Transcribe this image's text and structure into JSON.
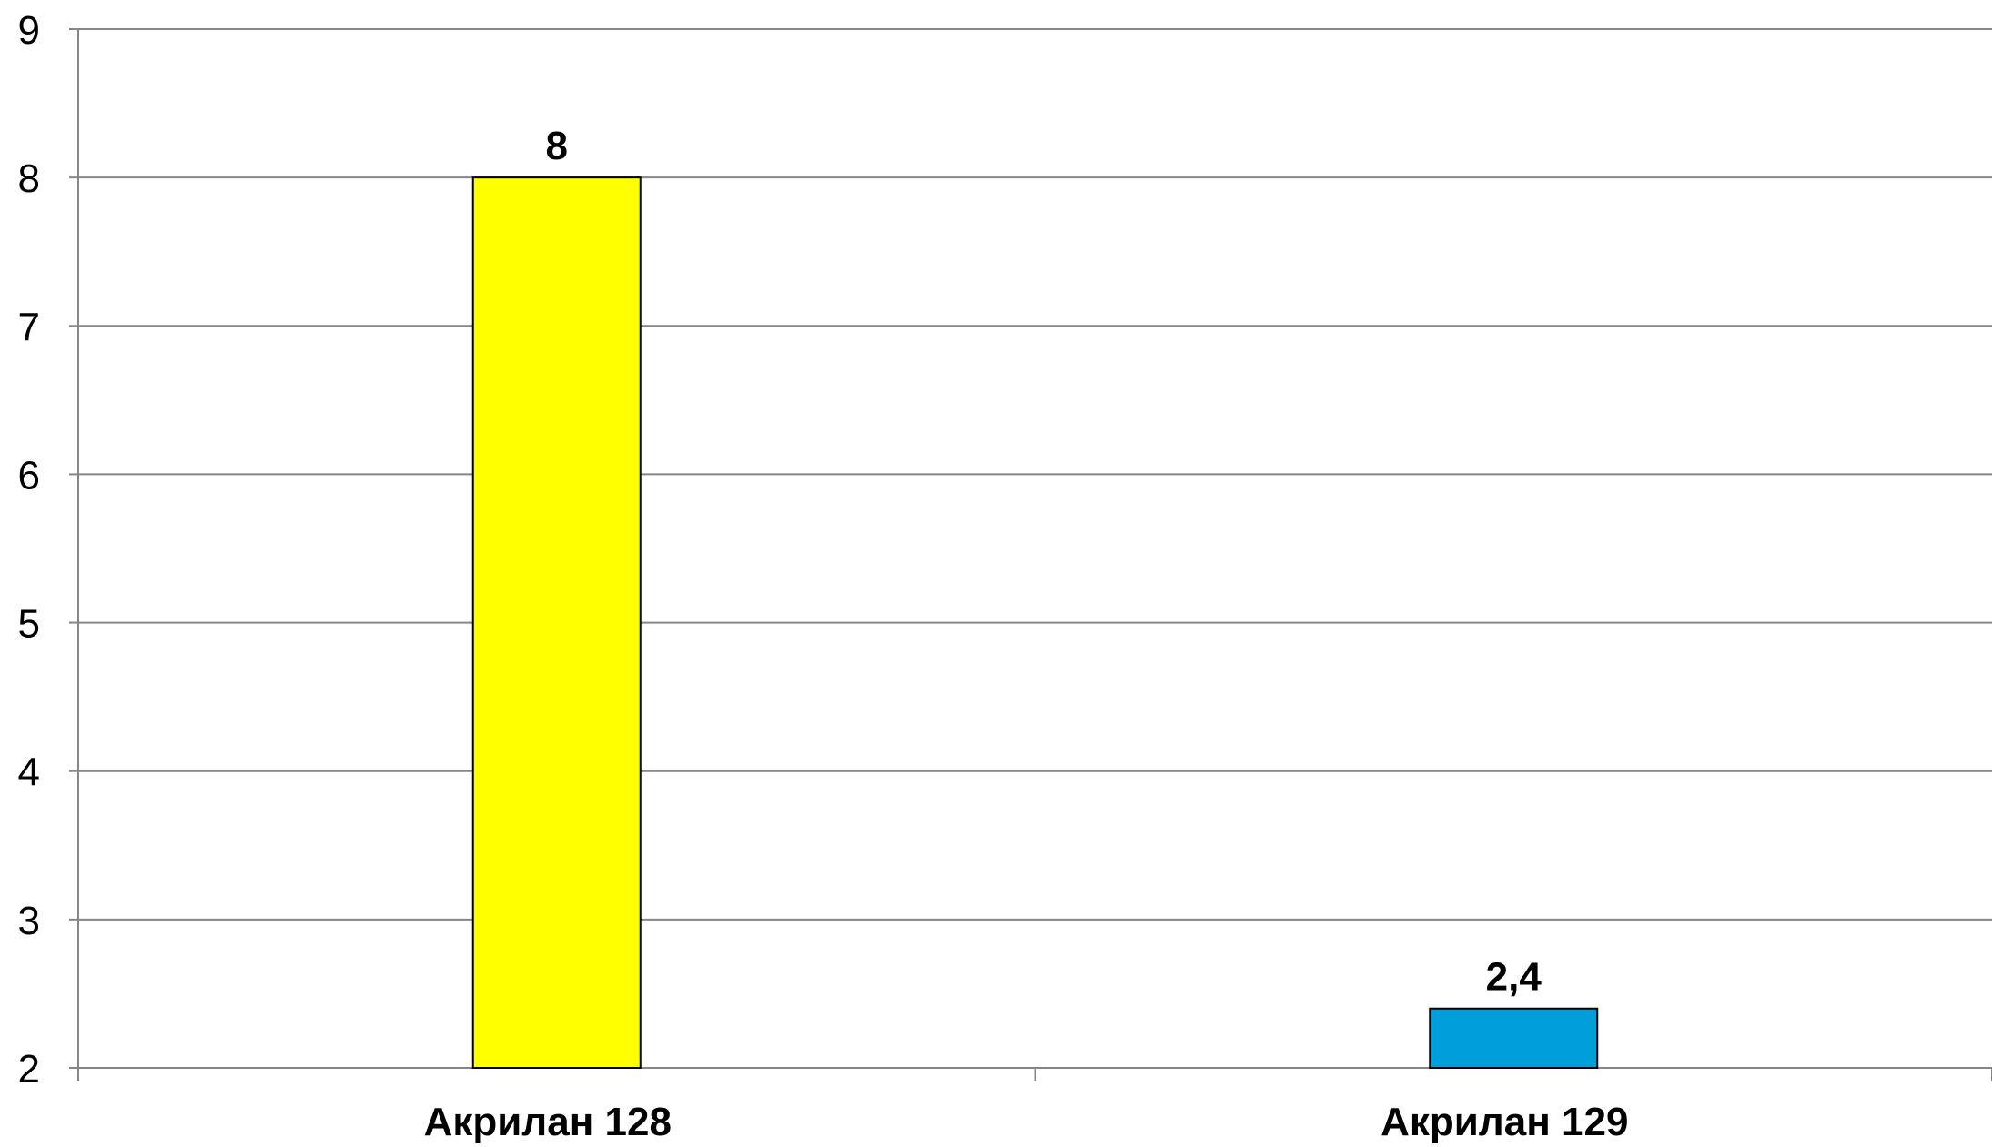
{
  "chart_data": {
    "type": "bar",
    "title": "",
    "xlabel": "",
    "ylabel": "",
    "categories": [
      "Акрилан 128",
      "Акрилан 129"
    ],
    "values": [
      8,
      2.4
    ],
    "data_labels": [
      "8",
      "2,4"
    ],
    "bar_colors": [
      "#FFFF00",
      "#009FDB"
    ],
    "ylim": [
      2,
      9
    ],
    "yticks": [
      2,
      3,
      4,
      5,
      6,
      7,
      8,
      9
    ],
    "grid": true,
    "legend": "none",
    "colors": {
      "gridline": "#868686",
      "axis": "#868686",
      "bar_outline": "#000000",
      "text": "#000000"
    }
  }
}
